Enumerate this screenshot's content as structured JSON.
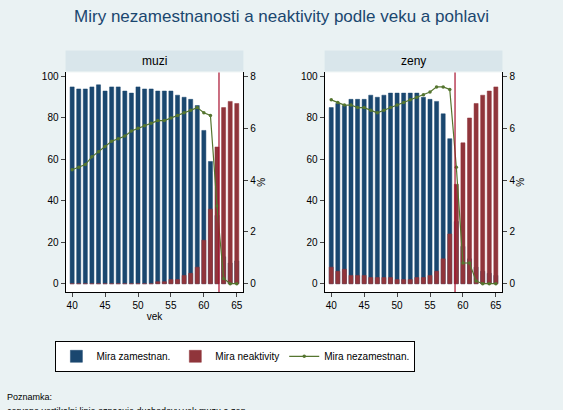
{
  "title": "Miry nezamestnanosti a neaktivity podle veku a pohlavi",
  "note": [
    "Poznamka:",
    "cervene vertikalni linie oznacuje duchodovy vek muzu a zen"
  ],
  "chart_data": [
    {
      "type": "bar",
      "title": "muzi",
      "x_title": "vek",
      "y2_title": "%",
      "x": [
        40,
        41,
        42,
        43,
        44,
        45,
        46,
        47,
        48,
        49,
        50,
        51,
        52,
        53,
        54,
        55,
        56,
        57,
        58,
        59,
        60,
        61,
        62,
        63,
        64,
        65
      ],
      "xlim": [
        39,
        66
      ],
      "xticks": [
        40,
        45,
        50,
        55,
        60,
        65
      ],
      "ylim": [
        -4,
        102
      ],
      "yticks": [
        0,
        20,
        40,
        60,
        80,
        100
      ],
      "y2lim": [
        -0.32,
        8.16
      ],
      "y2ticks": [
        0,
        2,
        4,
        6,
        8
      ],
      "grid": false,
      "legend": "bottom",
      "vline": {
        "x": 62.3,
        "color": "#a8102e"
      },
      "series": [
        {
          "name": "Mira zamestnan.",
          "type": "bar",
          "color": "#1a476f",
          "values": [
            95,
            94,
            94,
            95,
            96,
            93,
            95,
            95,
            93,
            92,
            95,
            94,
            94,
            93,
            93,
            93,
            91,
            90,
            89,
            86,
            74,
            59,
            33,
            13,
            10,
            11
          ]
        },
        {
          "name": "Mira neaktivity",
          "type": "bar",
          "color": "#90353b",
          "values": [
            0,
            0,
            0,
            0,
            0,
            0,
            0,
            0,
            0,
            0,
            0,
            0,
            0,
            1,
            1,
            2,
            2,
            4,
            5,
            8,
            21,
            36,
            66,
            85,
            88,
            87
          ]
        },
        {
          "name": "Mira nezamestnan.",
          "type": "line",
          "axis": "y2",
          "color": "#55752f",
          "marker": "circle",
          "values": [
            4.4,
            4.5,
            4.6,
            4.9,
            5.1,
            5.3,
            5.5,
            5.6,
            5.7,
            5.9,
            6.0,
            6.1,
            6.2,
            6.3,
            6.3,
            6.4,
            6.5,
            6.6,
            6.7,
            6.8,
            6.6,
            6.5,
            3.0,
            0.2,
            0,
            0
          ]
        }
      ]
    },
    {
      "type": "bar",
      "title": "zeny",
      "y2_title": "%",
      "x": [
        40,
        41,
        42,
        43,
        44,
        45,
        46,
        47,
        48,
        49,
        50,
        51,
        52,
        53,
        54,
        55,
        56,
        57,
        58,
        59,
        60,
        61,
        62,
        63,
        64,
        65
      ],
      "xlim": [
        39,
        66
      ],
      "xticks": [
        40,
        45,
        50,
        55,
        60,
        65
      ],
      "ylim": [
        -4,
        102
      ],
      "yticks": [
        0,
        20,
        40,
        60,
        80,
        100
      ],
      "y2lim": [
        -0.32,
        8.16
      ],
      "y2ticks": [
        0,
        2,
        4,
        6,
        8
      ],
      "grid": false,
      "legend": "bottom",
      "vline": {
        "x": 58.8,
        "color": "#a8102e"
      },
      "series": [
        {
          "name": "Mira zamestnan.",
          "type": "bar",
          "color": "#1a476f",
          "values": [
            85,
            87,
            86,
            89,
            89,
            89,
            91,
            90,
            91,
            92,
            92,
            92,
            92,
            92,
            90,
            89,
            88,
            82,
            70,
            30,
            18,
            12,
            8,
            6,
            5,
            4
          ]
        },
        {
          "name": "Mira neaktivity",
          "type": "bar",
          "color": "#90353b",
          "values": [
            8,
            6,
            7,
            4,
            4,
            4,
            3,
            3,
            3,
            3,
            2,
            2,
            2,
            3,
            3,
            4,
            6,
            12,
            24,
            48,
            68,
            80,
            87,
            91,
            93,
            95
          ]
        },
        {
          "name": "Mira nezamestnan.",
          "type": "line",
          "axis": "y2",
          "color": "#55752f",
          "marker": "circle",
          "values": [
            7.1,
            7.0,
            6.9,
            6.9,
            6.8,
            6.8,
            6.7,
            6.6,
            6.7,
            6.8,
            6.9,
            7.0,
            7.1,
            7.2,
            7.3,
            7.4,
            7.6,
            7.6,
            7.5,
            4.5,
            0.8,
            0.8,
            0.1,
            0,
            0,
            0
          ]
        }
      ]
    }
  ]
}
